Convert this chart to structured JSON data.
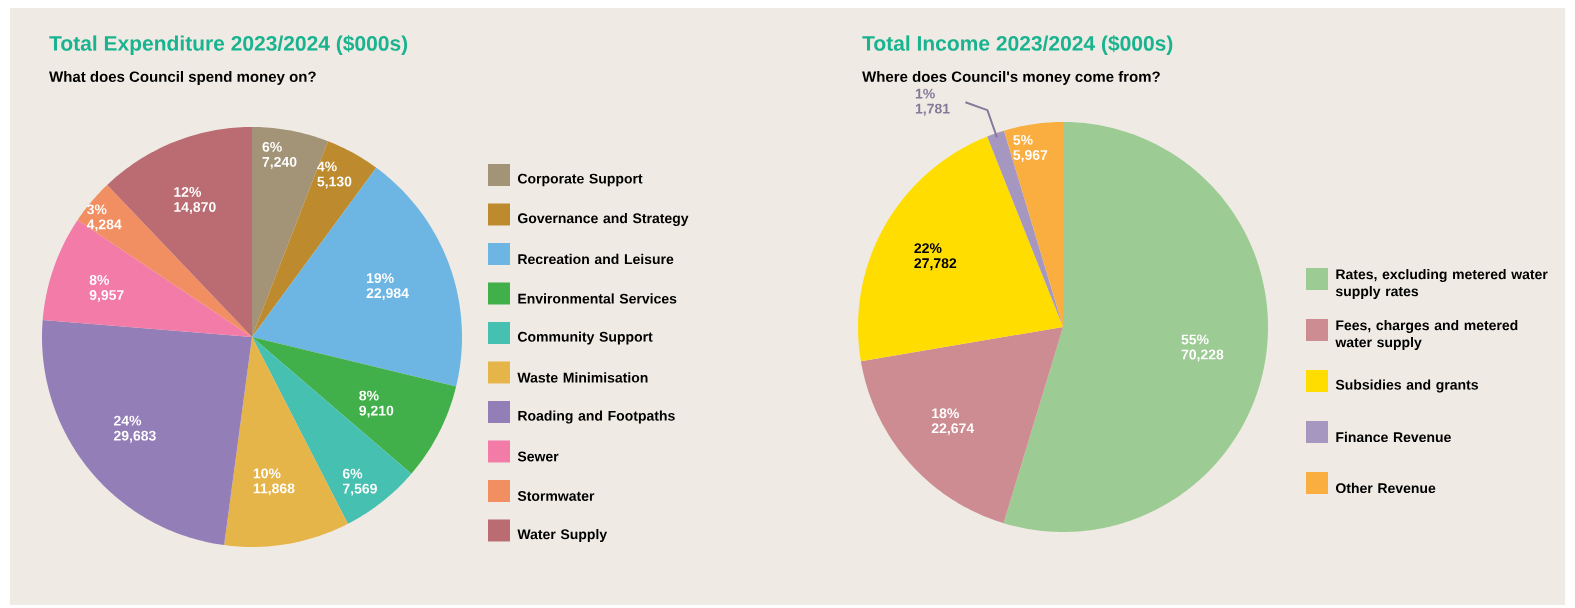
{
  "chart_data": [
    {
      "type": "pie",
      "title": "Total Expenditure 2023/2024 ($000s)",
      "subtitle": "What does Council spend money on?",
      "categories": [
        "Corporate Support",
        "Governance and Strategy",
        "Recreation and Leisure",
        "Environmental Services",
        "Community Support",
        "Waste Minimisation",
        "Roading and Footpaths",
        "Sewer",
        "Stormwater",
        "Water Supply"
      ],
      "values": [
        7240,
        5130,
        22984,
        9210,
        7569,
        11868,
        29683,
        9957,
        4284,
        14870
      ],
      "value_labels": [
        "6% 7,240",
        "4% 5,130",
        "19% 22,984",
        "8% 9,210",
        "6% 7,569",
        "10% 11,868",
        "24% 29,683",
        "8% 9,957",
        "3% 4,284",
        "12% 14,870"
      ],
      "colors": [
        "#a39478",
        "#bd8a2e",
        "#6db6e3",
        "#42b04a",
        "#46c0b0",
        "#e6b54a",
        "#937eb8",
        "#f27ba8",
        "#f28f62",
        "#bb6c72"
      ],
      "legend": "right"
    },
    {
      "type": "pie",
      "title": "Total Income 2023/2024 ($000s)",
      "subtitle": "Where does Council's money come from?",
      "categories": [
        "Rates, excluding metered water supply rates",
        "Fees, charges and metered water supply",
        "Subsidies and grants",
        "Finance Revenue",
        "Other Revenue"
      ],
      "values": [
        70228,
        22674,
        27782,
        1781,
        5967
      ],
      "value_labels": [
        "55% 70,228",
        "18% 22,674",
        "22% 27,782",
        "1% 1,781",
        "5% 5,967"
      ],
      "colors": [
        "#9ccb94",
        "#cc8c92",
        "#ffdd00",
        "#a597bf",
        "#fbae40"
      ],
      "legend": "right"
    }
  ]
}
